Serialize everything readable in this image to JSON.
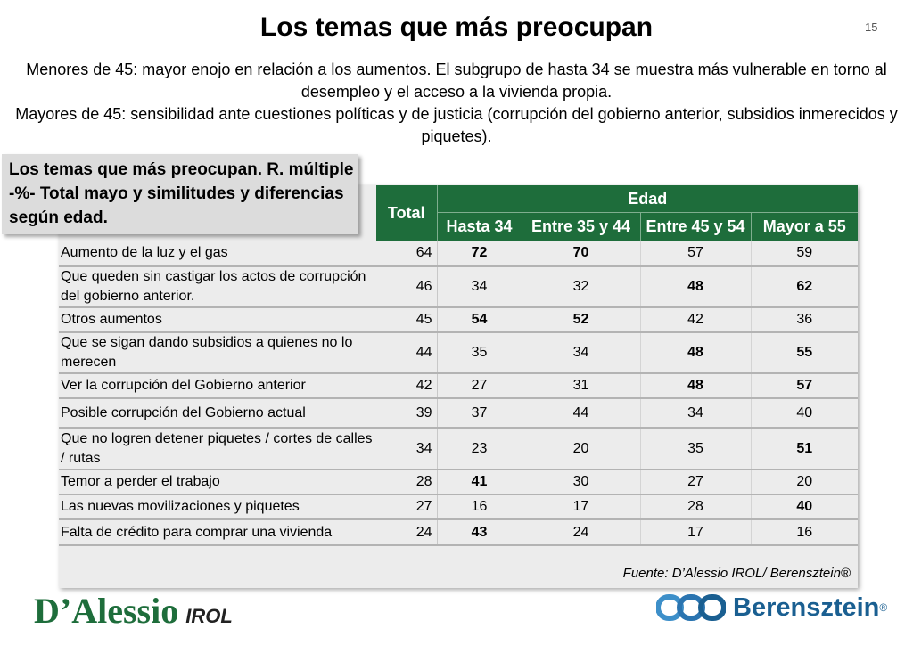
{
  "page": {
    "title": "Los temas que más preocupan",
    "slide_number": "15",
    "subtitle_line1": "Menores de 45: mayor enojo en relación a los aumentos. El subgrupo de hasta 34 se muestra más vulnerable en torno al desempleo y el acceso a la vivienda propia.",
    "subtitle_line2": "Mayores de 45: sensibilidad ante cuestiones políticas y de justicia (corrupción del gobierno anterior, subsidios inmerecidos y piquetes)."
  },
  "callout": {
    "text": "Los temas que más preocupan. R. múltiple -%- Total mayo y similitudes y diferencias según edad."
  },
  "table": {
    "header_total": "Total",
    "header_group": "Edad",
    "age_columns": [
      "Hasta 34",
      "Entre 35 y 44",
      "Entre 45 y 54",
      "Mayor a 55"
    ],
    "rows": [
      {
        "label": "Aumento de la luz y el gas",
        "total": "64",
        "values": [
          "72",
          "70",
          "57",
          "59"
        ],
        "bold": [
          true,
          true,
          false,
          false
        ]
      },
      {
        "label": "Que queden sin castigar los actos de corrupción del gobierno anterior.",
        "total": "46",
        "values": [
          "34",
          "32",
          "48",
          "62"
        ],
        "bold": [
          false,
          false,
          true,
          true
        ]
      },
      {
        "label": "Otros aumentos",
        "total": "45",
        "values": [
          "54",
          "52",
          "42",
          "36"
        ],
        "bold": [
          true,
          true,
          false,
          false
        ]
      },
      {
        "label": "Que se sigan dando subsidios a quienes no lo merecen",
        "total": "44",
        "values": [
          "35",
          "34",
          "48",
          "55"
        ],
        "bold": [
          false,
          false,
          true,
          true
        ]
      },
      {
        "label": "Ver la corrupción del Gobierno anterior",
        "total": "42",
        "values": [
          "27",
          "31",
          "48",
          "57"
        ],
        "bold": [
          false,
          false,
          true,
          true
        ]
      },
      {
        "label": "Posible corrupción del Gobierno actual",
        "total": "39",
        "values": [
          "37",
          "44",
          "34",
          "40"
        ],
        "bold": [
          false,
          false,
          false,
          false
        ]
      },
      {
        "label": "Que no logren detener piquetes / cortes de calles / rutas",
        "total": "34",
        "values": [
          "23",
          "20",
          "35",
          "51"
        ],
        "bold": [
          false,
          false,
          false,
          true
        ]
      },
      {
        "label": "Temor a perder el trabajo",
        "total": "28",
        "values": [
          "41",
          "30",
          "27",
          "20"
        ],
        "bold": [
          true,
          false,
          false,
          false
        ]
      },
      {
        "label": "Las nuevas movilizaciones y piquetes",
        "total": "27",
        "values": [
          "16",
          "17",
          "28",
          "40"
        ],
        "bold": [
          false,
          false,
          false,
          true
        ]
      },
      {
        "label": "Falta de crédito para comprar una vivienda",
        "total": "24",
        "values": [
          "43",
          "24",
          "17",
          "16"
        ],
        "bold": [
          true,
          false,
          false,
          false
        ]
      }
    ],
    "source": "Fuente: D’Alessio IROL/ Berensztein®"
  },
  "logos": {
    "dalessio": "D’Alessio",
    "irol": "IROL",
    "berensztein": "Berensztein",
    "registered": "®"
  },
  "colors": {
    "header_green": "#1e6d3b",
    "berensztein_blue": "#1a5f91"
  }
}
